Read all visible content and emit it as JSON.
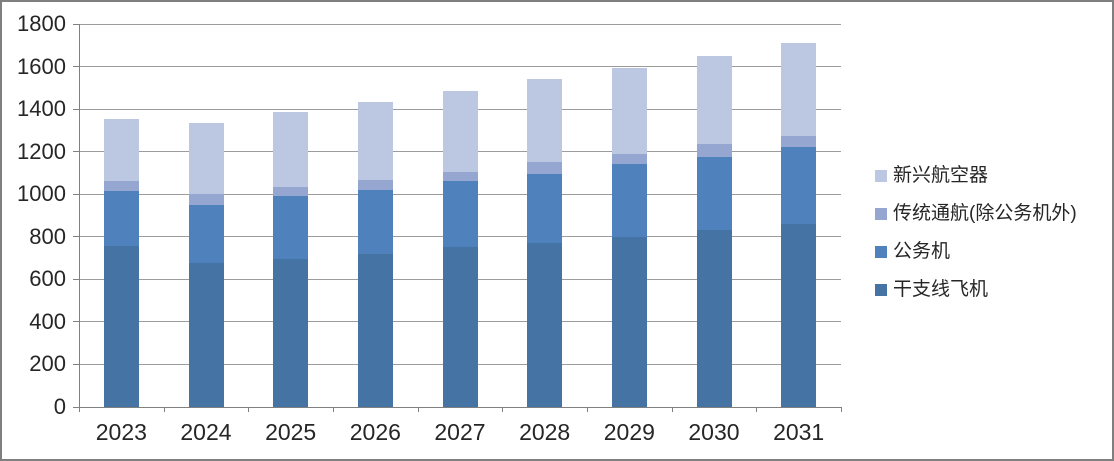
{
  "figure": {
    "background": "#ffffff",
    "border_color": "#7f7f7f"
  },
  "chart_data": {
    "type": "bar",
    "stacked": true,
    "title": "",
    "xlabel": "",
    "ylabel": "",
    "categories": [
      "2023",
      "2024",
      "2025",
      "2026",
      "2027",
      "2028",
      "2029",
      "2030",
      "2031"
    ],
    "series": [
      {
        "name": "干支线飞机",
        "color": "#4573A4",
        "values": [
          755,
          675,
          695,
          720,
          750,
          770,
          800,
          830,
          860
        ]
      },
      {
        "name": "公务机",
        "color": "#4F81BD",
        "values": [
          260,
          275,
          295,
          300,
          310,
          325,
          340,
          345,
          360
        ]
      },
      {
        "name": "传统通航(除公务机外)",
        "color": "#95A7D1",
        "values": [
          45,
          50,
          45,
          45,
          45,
          55,
          50,
          60,
          55
        ]
      },
      {
        "name": "新兴航空器",
        "color": "#BCC7E2",
        "values": [
          295,
          335,
          350,
          370,
          380,
          390,
          405,
          415,
          435
        ]
      }
    ],
    "stack_totals": [
      1355,
      1335,
      1385,
      1435,
      1485,
      1540,
      1595,
      1650,
      1710
    ],
    "ylim": [
      0,
      1800
    ],
    "ytick_step": 200,
    "ytick_labels": [
      "0",
      "200",
      "400",
      "600",
      "800",
      "1000",
      "1200",
      "1400",
      "1600",
      "1800"
    ],
    "grid": true,
    "gridline_color": "#9c9c9c",
    "axis_color": "#808080",
    "text_color": "#262626",
    "legend_position": "right",
    "legend_items_top_to_bottom": [
      "新兴航空器",
      "传统通航(除公务机外)",
      "公务机",
      "干支线飞机"
    ]
  }
}
